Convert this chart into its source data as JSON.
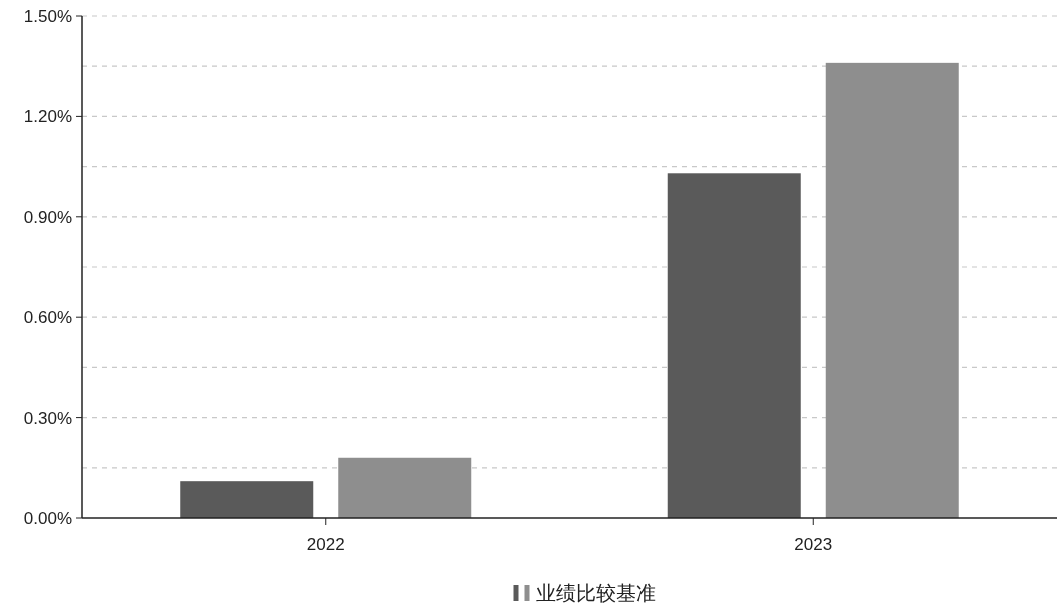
{
  "chart_data": {
    "type": "bar",
    "categories": [
      "2022",
      "2023"
    ],
    "series": [
      {
        "color": "#5a5a5a",
        "values": [
          0.11,
          1.03
        ]
      },
      {
        "name": "业绩比较基准",
        "color": "#8e8e8e",
        "values": [
          0.18,
          1.36
        ]
      }
    ],
    "ylim": [
      0,
      1.5
    ],
    "yticks": [
      {
        "value": 0,
        "label": "0.00%"
      },
      {
        "value": 0.15,
        "label": null
      },
      {
        "value": 0.3,
        "label": "0.30%"
      },
      {
        "value": 0.45,
        "label": null
      },
      {
        "value": 0.6,
        "label": "0.60%"
      },
      {
        "value": 0.75,
        "label": null
      },
      {
        "value": 0.9,
        "label": "0.90%"
      },
      {
        "value": 1.05,
        "label": null
      },
      {
        "value": 1.2,
        "label": "1.20%"
      },
      {
        "value": 1.35,
        "label": null
      },
      {
        "value": 1.5,
        "label": "1.50%"
      }
    ],
    "grid": "y",
    "legend": "bottom"
  }
}
